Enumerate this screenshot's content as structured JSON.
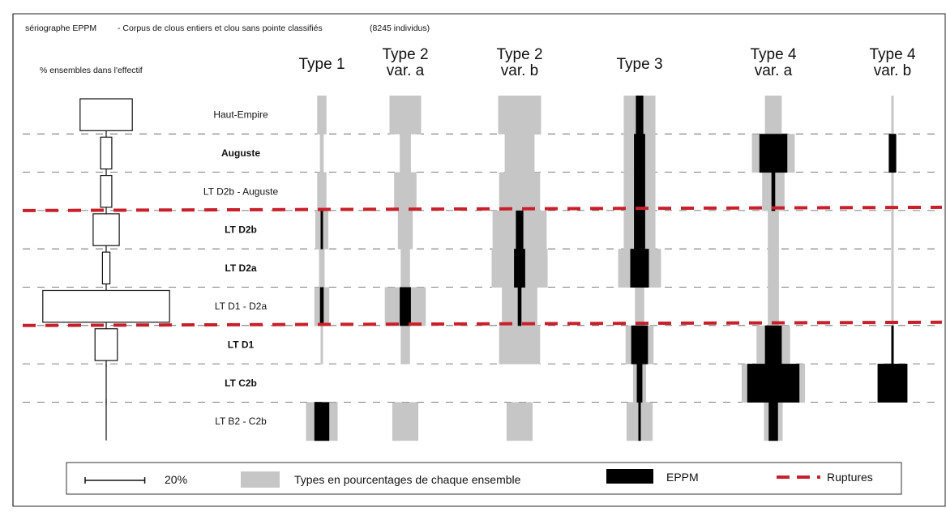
{
  "chart_data": {
    "type": "seriograph",
    "title": "sériographe EPPM",
    "subtitle": "- Corpus de clous entiers et clou sans pointe classifiés",
    "count_note": "(8245 individus)",
    "left_header": "% ensembles dans l'effectif",
    "periods": [
      {
        "label": "Haut-Empire",
        "bold": false
      },
      {
        "label": "Auguste",
        "bold": true
      },
      {
        "label": "LT D2b - Auguste",
        "bold": false
      },
      {
        "label": "LT D2b",
        "bold": true
      },
      {
        "label": "LT D2a",
        "bold": true
      },
      {
        "label": "LT D1 - D2a",
        "bold": false
      },
      {
        "label": "LT D1",
        "bold": true
      },
      {
        "label": "LT C2b",
        "bold": true
      },
      {
        "label": "LT B2 - C2b",
        "bold": false
      }
    ],
    "assemblage_share_pct": [
      14,
      3,
      3,
      7,
      2,
      34,
      6,
      0,
      0
    ],
    "types": [
      {
        "line1": "Type 1",
        "line2": "",
        "pct": [
          5,
          2,
          5,
          7,
          3,
          8,
          1,
          0,
          17
        ],
        "eppm": [
          0,
          0,
          0,
          1,
          0,
          2,
          0,
          0,
          8
        ]
      },
      {
        "line1": "Type 2",
        "line2": "var. a",
        "pct": [
          17,
          6,
          12,
          8,
          5,
          22,
          5,
          0,
          14
        ],
        "eppm": [
          0,
          0,
          0,
          0,
          0,
          6,
          0,
          0,
          0
        ]
      },
      {
        "line1": "Type 2",
        "line2": "var. b",
        "pct": [
          23,
          16,
          22,
          29,
          30,
          19,
          22,
          0,
          14
        ],
        "eppm": [
          0,
          0,
          0,
          4,
          6,
          2,
          0,
          0,
          0
        ]
      },
      {
        "line1": "Type 3",
        "line2": "",
        "pct": [
          17,
          17,
          17,
          17,
          23,
          5,
          15,
          7,
          14
        ],
        "eppm": [
          4,
          6,
          6,
          6,
          10,
          0,
          9,
          3,
          1
        ]
      },
      {
        "line1": "Type 4",
        "line2": "var. a",
        "pct": [
          9,
          23,
          12,
          6,
          6,
          6,
          18,
          34,
          10
        ],
        "eppm": [
          0,
          15,
          2,
          0,
          0,
          0,
          9,
          28,
          5
        ]
      },
      {
        "line1": "Type 4",
        "line2": "var. b",
        "pct": [
          0.5,
          4,
          0.5,
          0.5,
          0.5,
          0.5,
          0.5,
          16,
          0
        ],
        "eppm": [
          0,
          4,
          0,
          0,
          0,
          0,
          1,
          16,
          0
        ]
      }
    ],
    "ruptures_after_period": [
      2,
      5
    ],
    "legend": {
      "scale_label": "20%",
      "pct_label": "Types en pourcentages de chaque ensemble",
      "eppm_label": "EPPM",
      "rupture_label": "Ruptures"
    },
    "colors": {
      "pct": "#c6c6c6",
      "eppm": "#000000",
      "rupture": "#c8202a"
    }
  }
}
